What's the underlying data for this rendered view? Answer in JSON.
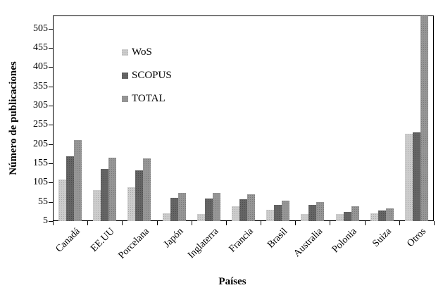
{
  "chart_data": {
    "type": "bar",
    "title": "",
    "xlabel": "Países",
    "ylabel": "Número de publicaciones",
    "categories": [
      "Canadá",
      "EE.UU",
      "Porcelana",
      "Japón",
      "Inglaterra",
      "Francia",
      "Brasil",
      "Australia",
      "Polonia",
      "Suiza",
      "Otros"
    ],
    "series": [
      {
        "name": "WoS",
        "color": "#c9c9c9",
        "values": [
          113,
          85,
          93,
          25,
          23,
          43,
          35,
          24,
          23,
          26,
          232
        ]
      },
      {
        "name": "SCOPUS",
        "color": "#5b5b5b",
        "values": [
          173,
          141,
          136,
          66,
          64,
          61,
          47,
          47,
          29,
          33,
          236
        ]
      },
      {
        "name": "TOTAL",
        "color": "#8f8f8f",
        "values": [
          215,
          170,
          168,
          78,
          78,
          75,
          58,
          54,
          43,
          38,
          540
        ]
      }
    ],
    "y_ticks": [
      5,
      55,
      105,
      155,
      205,
      255,
      305,
      355,
      405,
      455,
      505
    ],
    "ylim": [
      5,
      539
    ],
    "grid": false,
    "legend_position": "upper-left-inside",
    "note": "TOTAL bar for Otros is clipped at the top plot border"
  }
}
